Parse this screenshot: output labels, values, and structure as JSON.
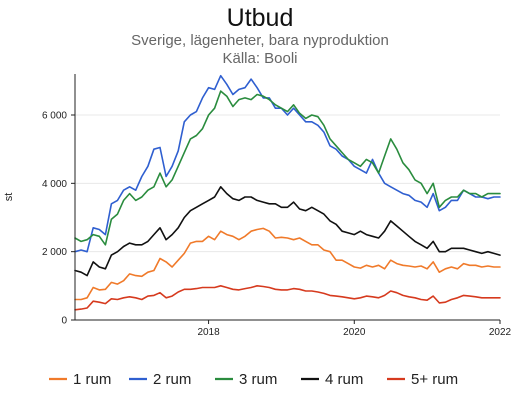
{
  "chart_data": {
    "type": "line",
    "title": "Utbud",
    "subtitle": "Sverige, lägenheter, bara nyproduktion",
    "source": "Källa: Booli",
    "ylabel": "st",
    "xlabel": "",
    "ylim": [
      0,
      7200
    ],
    "xlim": [
      "2016-03",
      "2022-01"
    ],
    "yticks": [
      0,
      2000,
      4000,
      6000
    ],
    "ytick_labels": [
      "0",
      "2 000",
      "4 000",
      "6 000"
    ],
    "xticks": [
      "2018-01",
      "2020-01",
      "2022-01"
    ],
    "xtick_labels": [
      "2018",
      "2020",
      "2022"
    ],
    "grid": "horizontal",
    "legend_position": "bottom",
    "x": [
      "2016-03",
      "2016-04",
      "2016-05",
      "2016-06",
      "2016-07",
      "2016-08",
      "2016-09",
      "2016-10",
      "2016-11",
      "2016-12",
      "2017-01",
      "2017-02",
      "2017-03",
      "2017-04",
      "2017-05",
      "2017-06",
      "2017-07",
      "2017-08",
      "2017-09",
      "2017-10",
      "2017-11",
      "2017-12",
      "2018-01",
      "2018-02",
      "2018-03",
      "2018-04",
      "2018-05",
      "2018-06",
      "2018-07",
      "2018-08",
      "2018-09",
      "2018-10",
      "2018-11",
      "2018-12",
      "2019-01",
      "2019-02",
      "2019-03",
      "2019-04",
      "2019-05",
      "2019-06",
      "2019-07",
      "2019-08",
      "2019-09",
      "2019-10",
      "2019-11",
      "2019-12",
      "2020-01",
      "2020-02",
      "2020-03",
      "2020-04",
      "2020-05",
      "2020-06",
      "2020-07",
      "2020-08",
      "2020-09",
      "2020-10",
      "2020-11",
      "2020-12",
      "2021-01",
      "2021-02",
      "2021-03",
      "2021-04",
      "2021-05",
      "2021-06",
      "2021-07",
      "2021-08",
      "2021-09",
      "2021-10",
      "2021-11",
      "2021-12",
      "2022-01"
    ],
    "series": [
      {
        "name": "1 rum",
        "color": "#f07a2a",
        "values": [
          600,
          600,
          650,
          950,
          880,
          900,
          1100,
          1050,
          1150,
          1350,
          1300,
          1280,
          1400,
          1450,
          1800,
          1700,
          1550,
          1750,
          1950,
          2250,
          2300,
          2300,
          2450,
          2350,
          2600,
          2500,
          2450,
          2350,
          2450,
          2600,
          2650,
          2680,
          2600,
          2400,
          2420,
          2400,
          2350,
          2400,
          2300,
          2200,
          2200,
          2050,
          2000,
          1750,
          1750,
          1650,
          1550,
          1520,
          1600,
          1550,
          1600,
          1500,
          1750,
          1650,
          1600,
          1580,
          1550,
          1580,
          1500,
          1700,
          1400,
          1500,
          1550,
          1500,
          1650,
          1600,
          1600,
          1550,
          1580,
          1550,
          1550
        ]
      },
      {
        "name": "2 rum",
        "color": "#2f5fd0",
        "values": [
          2000,
          2050,
          2000,
          2700,
          2650,
          2500,
          3400,
          3500,
          3800,
          3900,
          3800,
          4200,
          4500,
          5000,
          5050,
          4200,
          4500,
          4950,
          5800,
          6000,
          6100,
          6500,
          6800,
          6750,
          7150,
          6900,
          6600,
          6750,
          6800,
          7050,
          6800,
          6500,
          6500,
          6200,
          6200,
          6000,
          6200,
          6000,
          5800,
          5800,
          5700,
          5500,
          5100,
          5000,
          4800,
          4700,
          4500,
          4400,
          4300,
          4700,
          4300,
          4000,
          3900,
          3800,
          3700,
          3650,
          3500,
          3450,
          3300,
          3700,
          3200,
          3300,
          3500,
          3500,
          3800,
          3700,
          3600,
          3600,
          3550,
          3600,
          3600
        ]
      },
      {
        "name": "3 rum",
        "color": "#2a8c3e",
        "values": [
          2400,
          2300,
          2350,
          2500,
          2450,
          2200,
          2950,
          3100,
          3500,
          3700,
          3500,
          3600,
          3800,
          3900,
          4300,
          3900,
          4100,
          4500,
          4900,
          5300,
          5400,
          5600,
          6000,
          6200,
          6700,
          6550,
          6250,
          6450,
          6500,
          6450,
          6600,
          6550,
          6450,
          6300,
          6200,
          6100,
          6300,
          6050,
          5900,
          6000,
          5950,
          5700,
          5300,
          5100,
          4900,
          4700,
          4600,
          4500,
          4700,
          4600,
          4300,
          4800,
          5300,
          5000,
          4600,
          4400,
          4100,
          4000,
          3700,
          4000,
          3300,
          3500,
          3600,
          3600,
          3800,
          3700,
          3700,
          3600,
          3700,
          3700,
          3700
        ]
      },
      {
        "name": "4 rum",
        "color": "#111111",
        "values": [
          1450,
          1400,
          1300,
          1700,
          1550,
          1500,
          1900,
          2000,
          2150,
          2250,
          2200,
          2200,
          2300,
          2500,
          2700,
          2350,
          2500,
          2700,
          3000,
          3200,
          3300,
          3400,
          3500,
          3600,
          3900,
          3700,
          3550,
          3500,
          3600,
          3600,
          3500,
          3450,
          3400,
          3400,
          3300,
          3300,
          3450,
          3250,
          3200,
          3300,
          3200,
          3100,
          2900,
          2800,
          2600,
          2550,
          2500,
          2600,
          2500,
          2450,
          2400,
          2600,
          2900,
          2750,
          2600,
          2450,
          2300,
          2200,
          2100,
          2300,
          2000,
          2000,
          2100,
          2100,
          2100,
          2050,
          2000,
          1950,
          2000,
          1950,
          1900
        ]
      },
      {
        "name": "5+ rum",
        "color": "#d63a1e",
        "values": [
          300,
          320,
          350,
          550,
          520,
          480,
          620,
          600,
          650,
          680,
          650,
          600,
          700,
          720,
          800,
          650,
          700,
          820,
          900,
          900,
          920,
          950,
          950,
          950,
          1000,
          950,
          900,
          880,
          920,
          950,
          1000,
          980,
          950,
          900,
          880,
          880,
          920,
          900,
          850,
          850,
          820,
          780,
          720,
          700,
          680,
          650,
          620,
          650,
          700,
          680,
          650,
          720,
          850,
          800,
          720,
          680,
          650,
          600,
          580,
          700,
          500,
          520,
          600,
          650,
          720,
          700,
          680,
          650,
          650,
          650,
          650
        ]
      }
    ]
  },
  "colors": {
    "axis": "#222222",
    "grid": "#e8e8e8",
    "title": "#111111",
    "subtitle": "#666666"
  }
}
